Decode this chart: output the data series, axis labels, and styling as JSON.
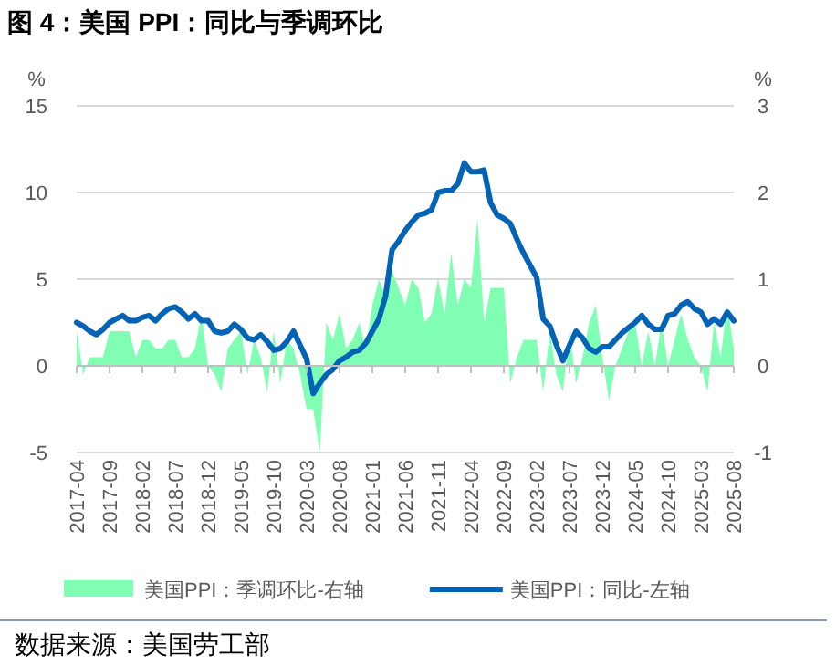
{
  "chart_data": {
    "type": "line",
    "title": "图 4：美国 PPI：同比与季调环比",
    "ylabel": "%",
    "y2label": "%",
    "annotations": [
      "数据来源：美国劳工部"
    ],
    "categories": [
      "2017-04",
      null,
      null,
      null,
      null,
      "2017-09",
      null,
      null,
      null,
      null,
      "2018-02",
      null,
      null,
      null,
      null,
      "2018-07",
      null,
      null,
      null,
      null,
      "2018-12",
      null,
      null,
      null,
      null,
      "2019-05",
      null,
      null,
      null,
      null,
      "2019-10",
      null,
      null,
      null,
      null,
      "2020-03",
      null,
      null,
      null,
      null,
      "2020-08",
      null,
      null,
      null,
      null,
      "2021-01",
      null,
      null,
      null,
      null,
      "2021-06",
      null,
      null,
      null,
      null,
      "2021-11",
      null,
      null,
      null,
      null,
      "2022-04",
      null,
      null,
      null,
      null,
      "2022-09",
      null,
      null,
      null,
      null,
      "2023-02",
      null,
      null,
      null,
      null,
      "2023-07",
      null,
      null,
      null,
      null,
      "2023-12",
      null,
      null,
      null,
      null,
      "2024-05",
      null,
      null,
      null,
      null,
      "2024-10",
      null,
      null,
      null,
      null,
      "2025-03",
      null,
      null,
      null,
      null,
      "2025-08"
    ],
    "series": [
      {
        "name": "美国PPI：季调环比-右轴",
        "type": "area",
        "axis": "y2",
        "color": "#80ffb4",
        "values": [
          0.4,
          -0.1,
          0.1,
          0.1,
          0.1,
          0.4,
          0.4,
          0.4,
          0.4,
          0.1,
          0.3,
          0.3,
          0.2,
          0.2,
          0.3,
          0.3,
          0.1,
          0.1,
          0.2,
          0.6,
          0.0,
          -0.1,
          -0.3,
          0.2,
          0.3,
          0.4,
          -0.1,
          0.3,
          0.1,
          -0.3,
          0.4,
          -0.2,
          0.3,
          0.2,
          -0.1,
          -0.5,
          -0.5,
          -1.0,
          0.5,
          0.3,
          0.6,
          0.2,
          0.3,
          0.5,
          0.2,
          0.7,
          1.0,
          0.8,
          1.1,
          0.9,
          0.7,
          1.0,
          0.9,
          0.5,
          0.6,
          1.0,
          0.6,
          1.3,
          0.7,
          1.0,
          0.9,
          1.7,
          0.5,
          0.9,
          0.9,
          0.9,
          -0.2,
          0.1,
          0.3,
          0.3,
          0.3,
          -0.3,
          0.4,
          -0.1,
          -0.3,
          0.4,
          -0.2,
          0.1,
          0.5,
          0.7,
          0.1,
          -0.4,
          0.0,
          0.2,
          0.4,
          0.5,
          0.0,
          0.4,
          0.0,
          0.5,
          0.0,
          0.3,
          0.6,
          0.3,
          0.1,
          0.0,
          -0.3,
          0.5,
          0.1,
          0.7,
          0.2
        ]
      },
      {
        "name": "美国PPI：同比-左轴",
        "axis": "y",
        "color": "#0563b5",
        "values": [
          2.5,
          2.3,
          2.0,
          1.8,
          2.1,
          2.5,
          2.7,
          2.9,
          2.6,
          2.6,
          2.8,
          2.9,
          2.6,
          3.0,
          3.3,
          3.4,
          3.1,
          2.7,
          3.0,
          2.6,
          2.6,
          2.0,
          1.9,
          2.0,
          2.4,
          2.1,
          1.6,
          1.5,
          1.8,
          1.4,
          0.9,
          1.0,
          1.4,
          2.0,
          1.2,
          0.4,
          -1.6,
          -1.0,
          -0.5,
          -0.2,
          0.3,
          0.5,
          0.8,
          0.9,
          1.3,
          2.0,
          2.7,
          4.0,
          6.7,
          7.2,
          7.8,
          8.3,
          8.7,
          8.8,
          9.0,
          10.0,
          10.1,
          10.1,
          10.5,
          11.7,
          11.2,
          11.2,
          11.3,
          9.4,
          8.7,
          8.5,
          8.2,
          7.3,
          6.5,
          5.8,
          5.1,
          2.7,
          2.3,
          1.2,
          0.3,
          1.2,
          2.0,
          1.6,
          1.0,
          0.8,
          1.1,
          1.1,
          1.5,
          1.9,
          2.2,
          2.5,
          2.9,
          2.4,
          2.1,
          2.1,
          2.9,
          3.0,
          3.5,
          3.7,
          3.3,
          3.1,
          2.4,
          2.7,
          2.4,
          3.1,
          2.6
        ]
      }
    ],
    "ylim": [
      -5,
      15
    ],
    "yticks": [
      -5,
      0,
      5,
      10,
      15
    ],
    "y2lim": [
      -1,
      3
    ],
    "y2ticks": [
      -1,
      0,
      1,
      2,
      3
    ],
    "grid": "y",
    "legend": "bottom"
  }
}
